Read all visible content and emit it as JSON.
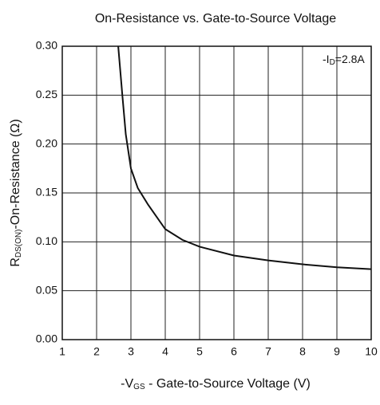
{
  "chart_data": {
    "type": "line",
    "title": "On-Resistance vs. Gate-to-Source Voltage",
    "x_label": {
      "prefix": "-V",
      "sub": "GS",
      "rest": " - Gate-to-Source Voltage (V)"
    },
    "y_label": {
      "prefix": "R",
      "sub": "DS(ON)",
      "rest": "-On-Resistance (Ω)"
    },
    "annotation": {
      "prefix": "-I",
      "sub": "D",
      "rest": "=2.8A"
    },
    "x": [
      2.63,
      2.75,
      2.85,
      3.0,
      3.2,
      3.5,
      4.0,
      4.5,
      5,
      6,
      7,
      8,
      9,
      10
    ],
    "series": [
      {
        "color": "#111111",
        "values": [
          0.3,
          0.25,
          0.21,
          0.175,
          0.155,
          0.138,
          0.113,
          0.102,
          0.095,
          0.086,
          0.081,
          0.077,
          0.074,
          0.072
        ]
      }
    ],
    "xlim": [
      1,
      10
    ],
    "xticks": [
      1,
      2,
      3,
      4,
      5,
      6,
      7,
      8,
      9,
      10
    ],
    "ylim": [
      0,
      0.3
    ],
    "yticks": [
      {
        "value": 0,
        "label": "0.00"
      },
      0.05,
      {
        "value": 0.1,
        "label": "0.10"
      },
      0.15,
      {
        "value": 0.2,
        "label": "0.20"
      },
      0.25,
      {
        "value": 0.3,
        "label": "0.30"
      }
    ],
    "grid": true
  }
}
